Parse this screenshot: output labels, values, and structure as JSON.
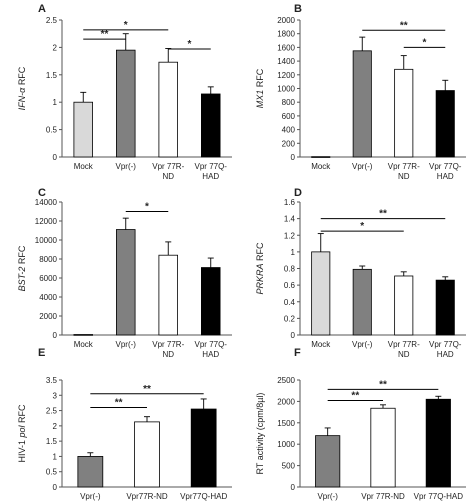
{
  "figure": {
    "colors": {
      "Mock": "#d9d9d9",
      "Vpr(-)": "#808080",
      "Vpr 77R-ND": "#ffffff",
      "Vpr 77Q-HAD": "#000000",
      "Vpr77R-ND": "#ffffff",
      "Vpr77Q-HAD": "#000000"
    }
  },
  "chart_data": [
    {
      "panel": "A",
      "type": "bar",
      "ylabel_italic": "IFN-α",
      "ylabel_rest": " RFC",
      "categories": [
        "Mock",
        "Vpr(-)",
        "Vpr 77R-\nND",
        "Vpr 77Q-\nHAD"
      ],
      "values": [
        1.0,
        1.95,
        1.73,
        1.15
      ],
      "errors": [
        0.18,
        0.3,
        0.25,
        0.13
      ],
      "ylim": [
        0,
        2.5
      ],
      "yticks": [
        0,
        0.5,
        1,
        1.5,
        2,
        2.5
      ],
      "fills": [
        "Mock",
        "Vpr(-)",
        "Vpr 77R-ND",
        "Vpr 77Q-HAD"
      ],
      "annotations": [
        {
          "from": 0,
          "to": 1,
          "y": 2.15,
          "label": "**"
        },
        {
          "from": 0,
          "to": 2,
          "y": 2.32,
          "label": "*"
        },
        {
          "from": 2,
          "to": 3,
          "y": 1.97,
          "label": "*"
        }
      ]
    },
    {
      "panel": "B",
      "type": "bar",
      "ylabel_italic": "MX1",
      "ylabel_rest": " RFC",
      "categories": [
        "Mock",
        "Vpr(-)",
        "Vpr 77R-\nND",
        "Vpr 77Q-\nHAD"
      ],
      "values": [
        5,
        1550,
        1280,
        970
      ],
      "errors": [
        0,
        200,
        200,
        150
      ],
      "ylim": [
        0,
        2000
      ],
      "yticks": [
        0,
        200,
        400,
        600,
        800,
        1000,
        1200,
        1400,
        1600,
        1800,
        2000
      ],
      "fills": [
        "Mock",
        "Vpr(-)",
        "Vpr 77R-ND",
        "Vpr 77Q-HAD"
      ],
      "annotations": [
        {
          "from": 1,
          "to": 3,
          "y": 1850,
          "label": "**"
        },
        {
          "from": 2,
          "to": 3,
          "y": 1600,
          "label": "*"
        }
      ]
    },
    {
      "panel": "C",
      "type": "bar",
      "ylabel_italic": "BST-2",
      "ylabel_rest": " RFC",
      "categories": [
        "Mock",
        "Vpr(-)",
        "Vpr 77R-\nND",
        "Vpr 77Q-\nHAD"
      ],
      "values": [
        50,
        11100,
        8400,
        7100
      ],
      "errors": [
        0,
        1200,
        1400,
        1000
      ],
      "ylim": [
        0,
        14000
      ],
      "yticks": [
        0,
        2000,
        4000,
        6000,
        8000,
        10000,
        12000,
        14000
      ],
      "fills": [
        "Mock",
        "Vpr(-)",
        "Vpr 77R-ND",
        "Vpr 77Q-HAD"
      ],
      "annotations": [
        {
          "from": 1,
          "to": 2,
          "y": 13000,
          "label": "*"
        }
      ]
    },
    {
      "panel": "D",
      "type": "bar",
      "ylabel_italic": "PRKRA",
      "ylabel_rest": " RFC",
      "categories": [
        "Mock",
        "Vpr(-)",
        "Vpr 77R-\nND",
        "Vpr 77Q-\nHAD"
      ],
      "values": [
        1.0,
        0.79,
        0.71,
        0.66
      ],
      "errors": [
        0.22,
        0.04,
        0.05,
        0.04
      ],
      "ylim": [
        0,
        1.6
      ],
      "yticks": [
        0,
        0.2,
        0.4,
        0.6,
        0.8,
        1.0,
        1.2,
        1.4,
        1.6
      ],
      "fills": [
        "Mock",
        "Vpr(-)",
        "Vpr 77R-ND",
        "Vpr 77Q-HAD"
      ],
      "annotations": [
        {
          "from": 0,
          "to": 3,
          "y": 1.4,
          "label": "**"
        },
        {
          "from": 0,
          "to": 2,
          "y": 1.25,
          "label": "*"
        }
      ]
    },
    {
      "panel": "E",
      "type": "bar",
      "ylabel_pre": "HIV-1 ",
      "ylabel_italic": "pol",
      "ylabel_rest": " RFC",
      "categories": [
        "Vpr(-)",
        "Vpr77R-ND",
        "Vpr77Q-HAD"
      ],
      "values": [
        1.0,
        2.13,
        2.55
      ],
      "errors": [
        0.12,
        0.17,
        0.33
      ],
      "ylim": [
        0,
        3.5
      ],
      "yticks": [
        0,
        0.5,
        1,
        1.5,
        2,
        2.5,
        3,
        3.5
      ],
      "fills": [
        "Vpr(-)",
        "Vpr77R-ND",
        "Vpr77Q-HAD"
      ],
      "annotations": [
        {
          "from": 0,
          "to": 1,
          "y": 2.6,
          "label": "**"
        },
        {
          "from": 0,
          "to": 2,
          "y": 3.05,
          "label": "**"
        }
      ]
    },
    {
      "panel": "F",
      "type": "bar",
      "ylabel_plain": "RT activity (cpm/8µl)",
      "categories": [
        "Vpr(-)",
        "Vpr 77R-ND",
        "Vpr 77Q-HAD"
      ],
      "values": [
        1200,
        1840,
        2050
      ],
      "errors": [
        180,
        80,
        70
      ],
      "ylim": [
        0,
        2500
      ],
      "yticks": [
        0,
        500,
        1000,
        1500,
        2000,
        2500
      ],
      "fills": [
        "Vpr(-)",
        "Vpr 77R-ND",
        "Vpr 77Q-HAD"
      ],
      "annotations": [
        {
          "from": 0,
          "to": 1,
          "y": 2020,
          "label": "**"
        },
        {
          "from": 0,
          "to": 2,
          "y": 2280,
          "label": "**"
        }
      ]
    }
  ]
}
